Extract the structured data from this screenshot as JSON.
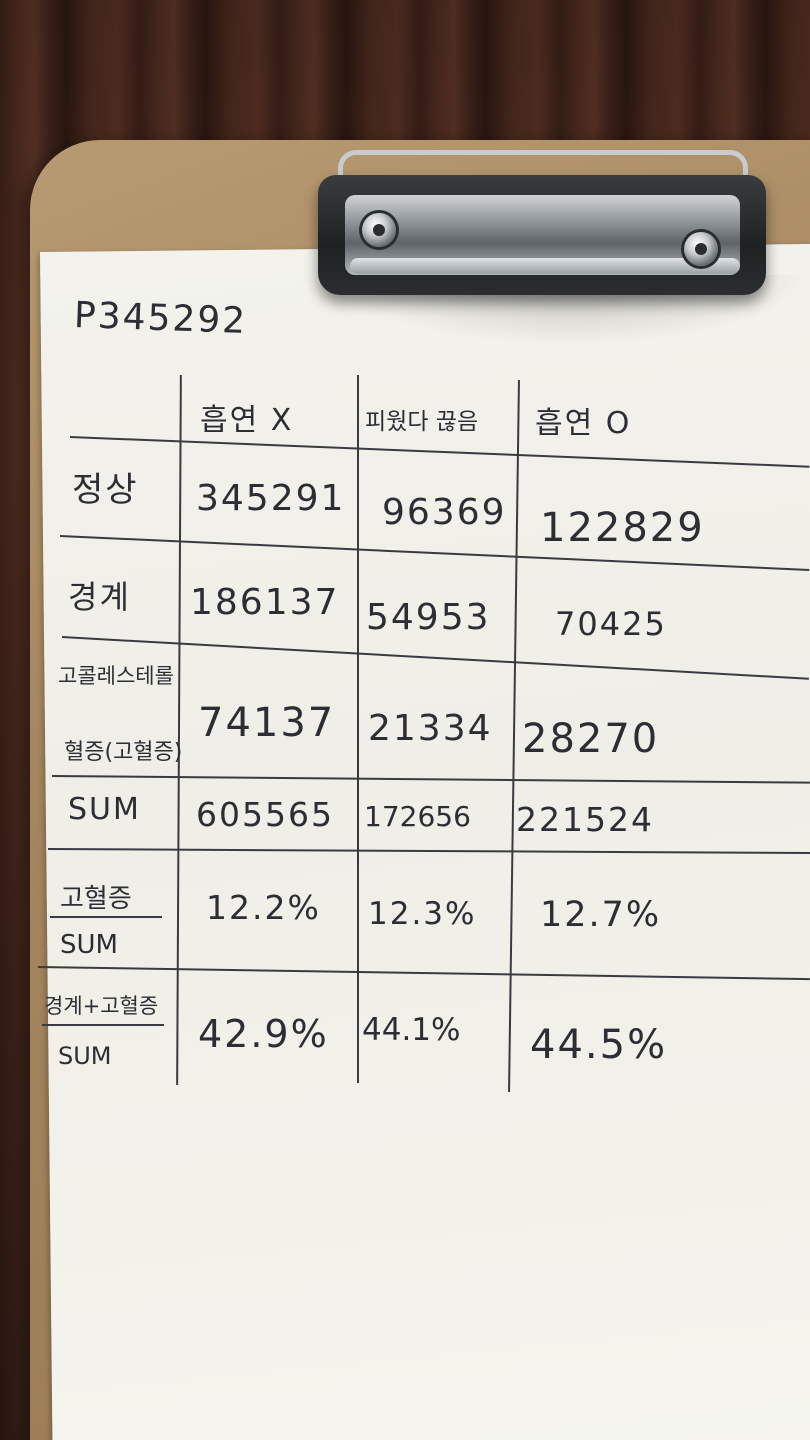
{
  "document_id": "P345292",
  "table": {
    "columns": [
      "흡연 X",
      "피웠다 끊음",
      "흡연 O"
    ],
    "rows": [
      {
        "label": "정상",
        "values": [
          "345291",
          "96369",
          "122829"
        ]
      },
      {
        "label": "경계",
        "values": [
          "186137",
          "54953",
          "70425"
        ]
      },
      {
        "label_lines": [
          "고콜레스테롤",
          "혈증(고혈증)"
        ],
        "values": [
          "74137",
          "21334",
          "28270"
        ]
      },
      {
        "label": "SUM",
        "values": [
          "605565",
          "172656",
          "221524"
        ]
      },
      {
        "label_lines": [
          "고혈증",
          "SUM"
        ],
        "values": [
          "12.2%",
          "12.3%",
          "12.7%"
        ]
      },
      {
        "label_lines": [
          "경계+고혈증",
          "SUM"
        ],
        "values": [
          "42.9%",
          "44.1%",
          "44.5%"
        ]
      }
    ]
  }
}
